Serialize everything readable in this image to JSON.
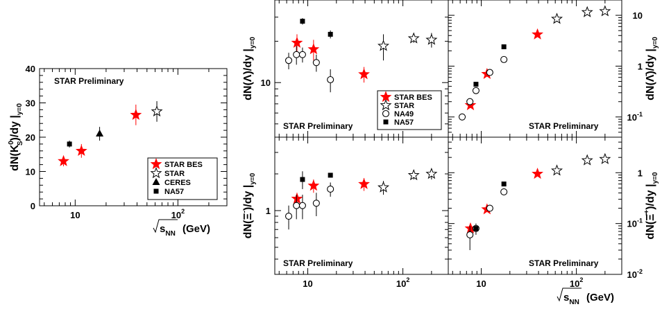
{
  "chart_data": [
    {
      "id": "k0s",
      "type": "scatter",
      "ylabel": "dN(K",
      "ylabel_sup": "0",
      "ylabel_sub": "S",
      "ylabel_rest": ")/dy |",
      "ylabel_sub2": "y=0",
      "xlabel_root": "s",
      "xlabel_sub": "NN",
      "xlabel_unit": "(GeV)",
      "annotation": "STAR Preliminary",
      "xscale": "log",
      "xlim": [
        4.5,
        300
      ],
      "yscale": "linear",
      "ylim": [
        0,
        40
      ],
      "yticks": [
        "0",
        "10",
        "20",
        "30",
        "40"
      ],
      "xticks": [
        {
          "v": 10,
          "t": "10"
        },
        {
          "v": 100,
          "t": "10",
          "sup": "2"
        }
      ],
      "legend": [
        {
          "name": "STAR BES",
          "marker": "star-filled"
        },
        {
          "name": "STAR",
          "marker": "star-open"
        },
        {
          "name": "CERES",
          "marker": "triangle"
        },
        {
          "name": "NA57",
          "marker": "square"
        }
      ],
      "series": [
        {
          "name": "STAR BES",
          "marker": "star-filled",
          "x": [
            7.7,
            11.5,
            39
          ],
          "y": [
            13,
            16,
            26.5
          ],
          "err": [
            1.5,
            2,
            3
          ]
        },
        {
          "name": "STAR",
          "marker": "star-open",
          "x": [
            62.4
          ],
          "y": [
            27.5
          ],
          "err": [
            3
          ]
        },
        {
          "name": "CERES",
          "marker": "triangle",
          "x": [
            17.3
          ],
          "y": [
            21
          ],
          "err": [
            2
          ]
        },
        {
          "name": "NA57",
          "marker": "square",
          "x": [
            8.8
          ],
          "y": [
            18
          ],
          "err": [
            1
          ]
        }
      ]
    },
    {
      "id": "lambda",
      "type": "scatter",
      "ylabel": "dN(Λ)/dy |",
      "ylabel_sub2": "y=0",
      "annotation": "STAR Preliminary",
      "xscale": "log",
      "xlim": [
        4.5,
        300
      ],
      "yscale": "log",
      "ylim": [
        4,
        40
      ],
      "yticks": [
        {
          "v": 10,
          "t": "10"
        }
      ],
      "legend": [
        {
          "name": "STAR BES",
          "marker": "star-filled"
        },
        {
          "name": "STAR",
          "marker": "star-open"
        },
        {
          "name": "NA49",
          "marker": "circle"
        },
        {
          "name": "NA57",
          "marker": "square"
        }
      ],
      "series": [
        {
          "name": "STAR BES",
          "marker": "star-filled",
          "x": [
            7.7,
            11.5,
            39
          ],
          "y": [
            19.5,
            17.5,
            11.5
          ],
          "err": [
            3,
            3,
            1.5
          ]
        },
        {
          "name": "STAR",
          "marker": "star-open",
          "x": [
            62.4,
            130,
            200
          ],
          "y": [
            18.5,
            21,
            20.5
          ],
          "err": [
            4,
            1.5,
            2.5
          ]
        },
        {
          "name": "NA49",
          "marker": "circle",
          "x": [
            6.3,
            7.6,
            8.8,
            12.3,
            17.3
          ],
          "y": [
            14.5,
            16,
            16,
            14,
            10.5
          ],
          "err": [
            2,
            2.5,
            2,
            2,
            2
          ]
        },
        {
          "name": "NA57",
          "marker": "square",
          "x": [
            8.8,
            17.3
          ],
          "y": [
            28,
            22.5
          ],
          "err": [
            1.5,
            1.5
          ]
        }
      ]
    },
    {
      "id": "antilambda",
      "type": "scatter",
      "ylabel": "dN(Λ̄)/dy |",
      "ylabel_sub2": "y=0",
      "annotation": "STAR Preliminary",
      "xscale": "log",
      "xlim": [
        4.5,
        300
      ],
      "yscale": "log",
      "ylim": [
        0.04,
        20
      ],
      "yticks": [
        {
          "v": 0.1,
          "t": "10",
          "sup": "-1"
        },
        {
          "v": 1,
          "t": "1"
        },
        {
          "v": 10,
          "t": "10"
        }
      ],
      "series": [
        {
          "name": "STAR BES",
          "marker": "star-filled",
          "x": [
            7.7,
            11.5,
            39
          ],
          "y": [
            0.17,
            0.7,
            4.2
          ],
          "err": [
            0.02,
            0.06,
            0.3
          ]
        },
        {
          "name": "STAR",
          "marker": "star-open",
          "x": [
            62.4,
            130,
            200
          ],
          "y": [
            8.5,
            11.5,
            12
          ],
          "err": [
            0.8,
            1,
            1
          ]
        },
        {
          "name": "NA49",
          "marker": "circle",
          "x": [
            6.3,
            7.6,
            8.8,
            12.3,
            17.3
          ],
          "y": [
            0.1,
            0.2,
            0.33,
            0.75,
            1.35
          ],
          "err": [
            0.01,
            0.02,
            0.03,
            0.07,
            0.1
          ]
        },
        {
          "name": "NA57",
          "marker": "square",
          "x": [
            8.8,
            17.3
          ],
          "y": [
            0.44,
            2.4
          ],
          "err": [
            0.03,
            0.2
          ]
        }
      ]
    },
    {
      "id": "xi",
      "type": "scatter",
      "ylabel": "dN(Ξ",
      "ylabel_sup": "-",
      "ylabel_rest": ")/dy |",
      "ylabel_sub2": "y=0",
      "annotation": "STAR Preliminary",
      "xscale": "log",
      "xlim": [
        4.5,
        300
      ],
      "yscale": "log",
      "ylim": [
        0.3,
        4
      ],
      "yticks": [
        {
          "v": 1,
          "t": "1"
        }
      ],
      "series": [
        {
          "name": "STAR BES",
          "marker": "star-filled",
          "x": [
            7.7,
            11.5,
            39
          ],
          "y": [
            1.25,
            1.6,
            1.65
          ],
          "err": [
            0.15,
            0.2,
            0.2
          ]
        },
        {
          "name": "STAR",
          "marker": "star-open",
          "x": [
            62.4,
            130,
            200
          ],
          "y": [
            1.55,
            1.95,
            2.0
          ],
          "err": [
            0.2,
            0.15,
            0.2
          ]
        },
        {
          "name": "NA49",
          "marker": "circle",
          "x": [
            6.3,
            7.6,
            8.8,
            12.3,
            17.3
          ],
          "y": [
            0.9,
            1.1,
            1.1,
            1.15,
            1.5
          ],
          "err": [
            0.2,
            0.25,
            0.25,
            0.25,
            0.2
          ]
        },
        {
          "name": "NA57",
          "marker": "square",
          "x": [
            8.8,
            17.3
          ],
          "y": [
            1.8,
            1.95
          ],
          "err": [
            0.3,
            0.05
          ]
        }
      ]
    },
    {
      "id": "antixi",
      "type": "scatter",
      "ylabel": "dN(Ξ̄",
      "ylabel_sup": "+",
      "ylabel_rest": ")/dy |",
      "ylabel_sub2": "y=0",
      "xlabel_root": "s",
      "xlabel_sub": "NN",
      "xlabel_unit": "(GeV)",
      "annotation": "STAR Preliminary",
      "xscale": "log",
      "xlim": [
        4.5,
        300
      ],
      "yscale": "log",
      "ylim": [
        0.01,
        5
      ],
      "yticks": [
        {
          "v": 0.01,
          "t": "10",
          "sup": "-2"
        },
        {
          "v": 0.1,
          "t": "10",
          "sup": "-1"
        },
        {
          "v": 1,
          "t": "1"
        }
      ],
      "xticks": [
        {
          "v": 10,
          "t": "10"
        },
        {
          "v": 100,
          "t": "10",
          "sup": "2"
        }
      ],
      "series": [
        {
          "name": "STAR BES",
          "marker": "star-filled",
          "x": [
            7.7,
            11.5,
            39
          ],
          "y": [
            0.08,
            0.19,
            0.95
          ],
          "err": [
            0.01,
            0.02,
            0.08
          ]
        },
        {
          "name": "STAR",
          "marker": "star-open",
          "x": [
            62.4,
            130,
            200
          ],
          "y": [
            1.1,
            1.75,
            1.85
          ],
          "err": [
            0.1,
            0.15,
            0.15
          ]
        },
        {
          "name": "NA49",
          "marker": "circle",
          "x": [
            7.6,
            8.8,
            12.3,
            17.3
          ],
          "y": [
            0.06,
            0.08,
            0.2,
            0.42
          ],
          "err": [
            0.03,
            0.02,
            0.02,
            0.04
          ]
        },
        {
          "name": "NA57",
          "marker": "square",
          "x": [
            8.8,
            17.3
          ],
          "y": [
            0.08,
            0.6
          ],
          "err": [
            0.01,
            0.04
          ]
        }
      ]
    }
  ],
  "colors": {
    "star_bes": "#ff0000",
    "marker": "#000000",
    "frame": "#000000"
  }
}
